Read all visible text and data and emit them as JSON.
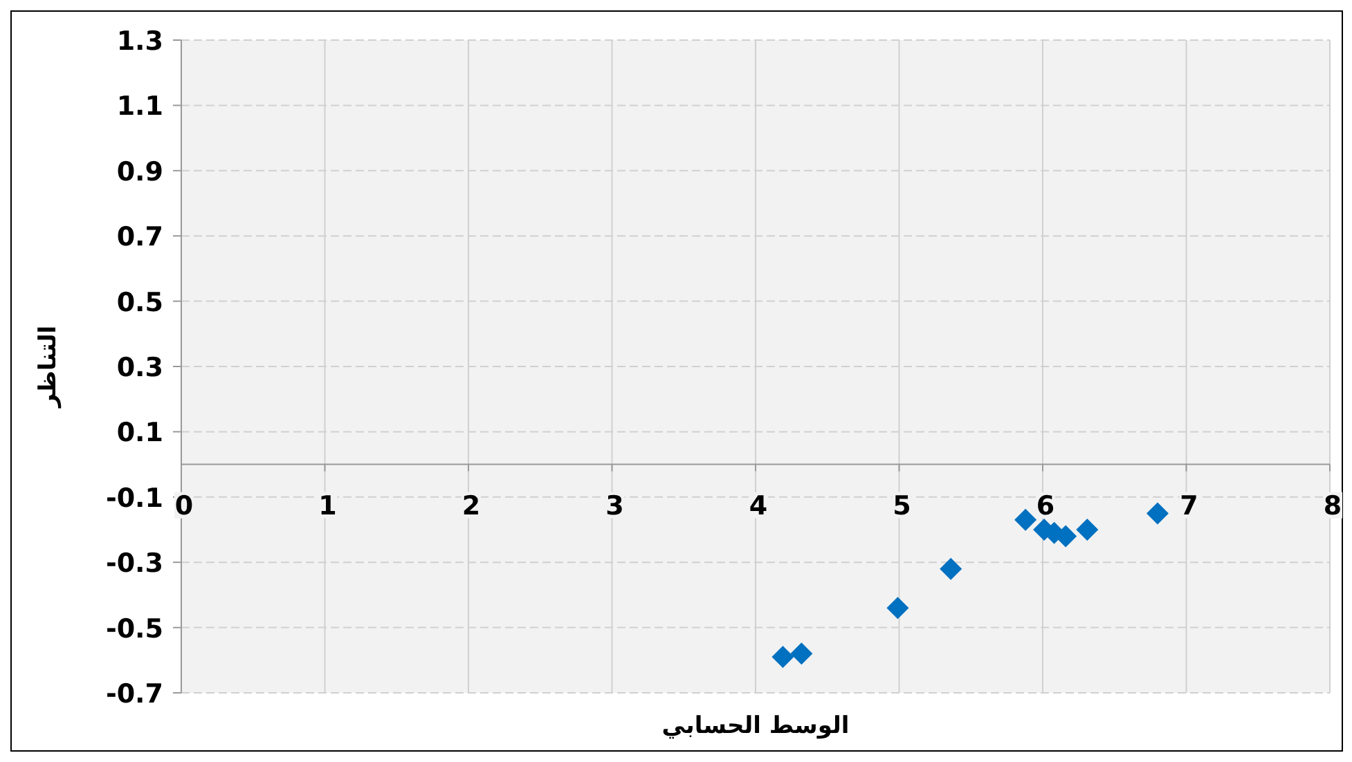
{
  "chart_data": {
    "type": "scatter",
    "xlabel": "الوسط الحسابي",
    "ylabel": "التناظر",
    "x": [
      4.19,
      4.32,
      4.99,
      5.36,
      5.88,
      6.01,
      6.08,
      6.16,
      6.31,
      6.8
    ],
    "values": [
      -0.59,
      -0.58,
      -0.44,
      -0.32,
      -0.17,
      -0.2,
      -0.21,
      -0.22,
      -0.2,
      -0.15
    ],
    "color": "#0070c0",
    "marker": "diamond",
    "grid": true,
    "xlim": [
      0,
      8
    ],
    "xticks": [
      0,
      1,
      2,
      3,
      4,
      5,
      6,
      7,
      8
    ],
    "ylim": [
      -0.7,
      1.3
    ],
    "yticks": [
      -0.7,
      -0.5,
      -0.3,
      -0.1,
      0.1,
      0.3,
      0.5,
      0.7,
      0.9,
      1.1,
      1.3
    ]
  }
}
